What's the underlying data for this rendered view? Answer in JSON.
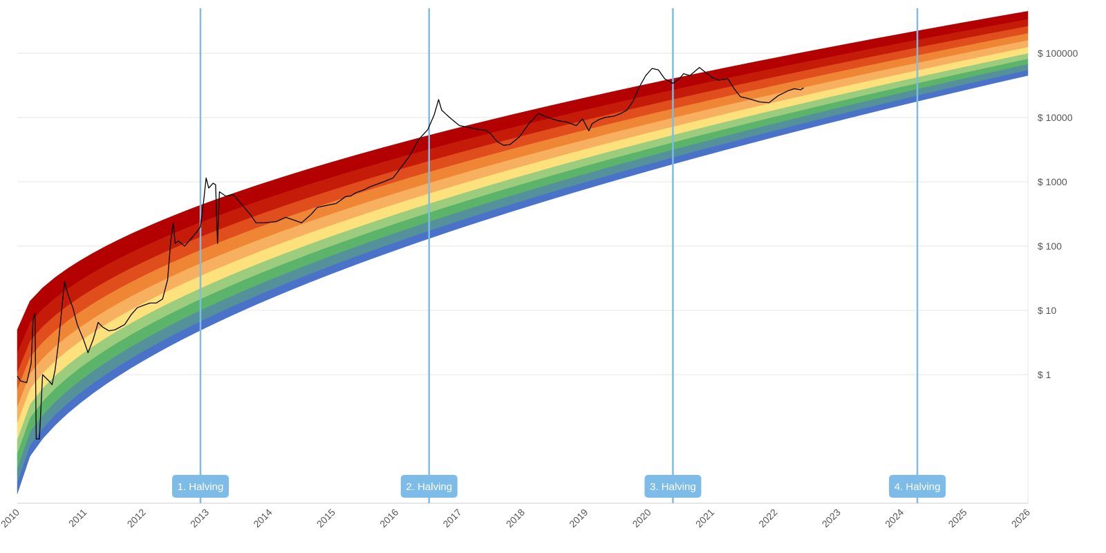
{
  "chart_data": {
    "type": "area",
    "title": "",
    "xlabel": "",
    "ylabel": "",
    "y_scale": "log",
    "xlim": [
      2010,
      2026
    ],
    "ylim": [
      0.01,
      500000
    ],
    "grid": true,
    "y_ticks": [
      {
        "value": 1,
        "label": "$ 1"
      },
      {
        "value": 10,
        "label": "$ 10"
      },
      {
        "value": 100,
        "label": "$ 100"
      },
      {
        "value": 1000,
        "label": "$ 1000"
      },
      {
        "value": 10000,
        "label": "$ 10000"
      },
      {
        "value": 100000,
        "label": "$ 100000"
      }
    ],
    "x_ticks": [
      "2010",
      "2011",
      "2012",
      "2013",
      "2014",
      "2015",
      "2016",
      "2017",
      "2018",
      "2019",
      "2020",
      "2021",
      "2022",
      "2023",
      "2024",
      "2025",
      "2026"
    ],
    "rainbow_bands": {
      "colors": [
        "#4a72c8",
        "#55919a",
        "#5cb36a",
        "#9ccd7e",
        "#fde17d",
        "#f7b060",
        "#ef8635",
        "#df4e1c",
        "#c51c0a",
        "#b30000"
      ],
      "bounds_at_2010": [
        0.014,
        0.021,
        0.035,
        0.06,
        0.1,
        0.18,
        0.32,
        0.6,
        1.1,
        2.2,
        5.0
      ],
      "bounds_at_2026": [
        45000,
        55000,
        68000,
        82000,
        100000,
        125000,
        160000,
        205000,
        265000,
        340000,
        450000
      ]
    },
    "halvings": [
      {
        "date": 2012.9,
        "label": "1. Halving"
      },
      {
        "date": 2016.52,
        "label": "2. Halving"
      },
      {
        "date": 2020.38,
        "label": "3. Halving"
      },
      {
        "date": 2024.25,
        "label": "4. Halving"
      }
    ],
    "series": [
      {
        "color": "#000000",
        "points": [
          [
            2010.0,
            0.95
          ],
          [
            2010.05,
            0.8
          ],
          [
            2010.15,
            0.75
          ],
          [
            2010.22,
            1.5
          ],
          [
            2010.25,
            7
          ],
          [
            2010.28,
            9
          ],
          [
            2010.3,
            0.1
          ],
          [
            2010.35,
            0.1
          ],
          [
            2010.4,
            1.0
          ],
          [
            2010.5,
            0.8
          ],
          [
            2010.55,
            0.7
          ],
          [
            2010.6,
            1.2
          ],
          [
            2010.65,
            3
          ],
          [
            2010.72,
            15
          ],
          [
            2010.75,
            28
          ],
          [
            2010.8,
            18
          ],
          [
            2010.88,
            11
          ],
          [
            2010.95,
            6
          ],
          [
            2011.05,
            3.5
          ],
          [
            2011.12,
            2.2
          ],
          [
            2011.2,
            3.5
          ],
          [
            2011.28,
            6.5
          ],
          [
            2011.35,
            5.5
          ],
          [
            2011.45,
            4.8
          ],
          [
            2011.55,
            5.0
          ],
          [
            2011.7,
            6.0
          ],
          [
            2011.8,
            8.5
          ],
          [
            2011.9,
            11
          ],
          [
            2012.0,
            12
          ],
          [
            2012.1,
            13
          ],
          [
            2012.2,
            13
          ],
          [
            2012.3,
            15
          ],
          [
            2012.38,
            30
          ],
          [
            2012.43,
            120
          ],
          [
            2012.47,
            230
          ],
          [
            2012.5,
            110
          ],
          [
            2012.55,
            120
          ],
          [
            2012.65,
            100
          ],
          [
            2012.75,
            130
          ],
          [
            2012.85,
            170
          ],
          [
            2012.9,
            200
          ],
          [
            2012.95,
            500
          ],
          [
            2012.99,
            1150
          ],
          [
            2013.03,
            800
          ],
          [
            2013.1,
            950
          ],
          [
            2013.14,
            900
          ],
          [
            2013.17,
            110
          ],
          [
            2013.2,
            700
          ],
          [
            2013.3,
            600
          ],
          [
            2013.42,
            630
          ],
          [
            2013.55,
            450
          ],
          [
            2013.7,
            300
          ],
          [
            2013.78,
            230
          ],
          [
            2013.9,
            230
          ],
          [
            2014.1,
            240
          ],
          [
            2014.25,
            280
          ],
          [
            2014.4,
            250
          ],
          [
            2014.5,
            230
          ],
          [
            2014.65,
            310
          ],
          [
            2014.75,
            400
          ],
          [
            2014.9,
            430
          ],
          [
            2015.05,
            460
          ],
          [
            2015.2,
            590
          ],
          [
            2015.28,
            600
          ],
          [
            2015.35,
            670
          ],
          [
            2015.5,
            760
          ],
          [
            2015.6,
            850
          ],
          [
            2015.8,
            1000
          ],
          [
            2015.95,
            1150
          ],
          [
            2016.1,
            1800
          ],
          [
            2016.22,
            2600
          ],
          [
            2016.35,
            4500
          ],
          [
            2016.5,
            6500
          ],
          [
            2016.6,
            11000
          ],
          [
            2016.67,
            19000
          ],
          [
            2016.72,
            13000
          ],
          [
            2016.8,
            11000
          ],
          [
            2016.9,
            9000
          ],
          [
            2017.0,
            7500
          ],
          [
            2017.15,
            7000
          ],
          [
            2017.3,
            6500
          ],
          [
            2017.4,
            6400
          ],
          [
            2017.45,
            6000
          ],
          [
            2017.5,
            5500
          ],
          [
            2017.6,
            4200
          ],
          [
            2017.7,
            3700
          ],
          [
            2017.8,
            3800
          ],
          [
            2017.95,
            5000
          ],
          [
            2018.1,
            8000
          ],
          [
            2018.25,
            11500
          ],
          [
            2018.4,
            10000
          ],
          [
            2018.55,
            9000
          ],
          [
            2018.7,
            8500
          ],
          [
            2018.85,
            7500
          ],
          [
            2018.95,
            9500
          ],
          [
            2019.05,
            6200
          ],
          [
            2019.1,
            8000
          ],
          [
            2019.2,
            9200
          ],
          [
            2019.3,
            10000
          ],
          [
            2019.45,
            10500
          ],
          [
            2019.55,
            11500
          ],
          [
            2019.65,
            13000
          ],
          [
            2019.75,
            18000
          ],
          [
            2019.85,
            30000
          ],
          [
            2019.95,
            45000
          ],
          [
            2020.05,
            58000
          ],
          [
            2020.15,
            55000
          ],
          [
            2020.25,
            40000
          ],
          [
            2020.38,
            34000
          ],
          [
            2020.48,
            40000
          ],
          [
            2020.55,
            48000
          ],
          [
            2020.65,
            45000
          ],
          [
            2020.8,
            60000
          ],
          [
            2020.9,
            50000
          ],
          [
            2021.0,
            42000
          ],
          [
            2021.1,
            38000
          ],
          [
            2021.25,
            40000
          ],
          [
            2021.35,
            28000
          ],
          [
            2021.45,
            21000
          ],
          [
            2021.55,
            20000
          ],
          [
            2021.75,
            17500
          ],
          [
            2021.9,
            17000
          ],
          [
            2022.05,
            22000
          ],
          [
            2022.2,
            26000
          ],
          [
            2022.3,
            28000
          ],
          [
            2022.4,
            27000
          ],
          [
            2022.45,
            29000
          ]
        ]
      }
    ]
  }
}
